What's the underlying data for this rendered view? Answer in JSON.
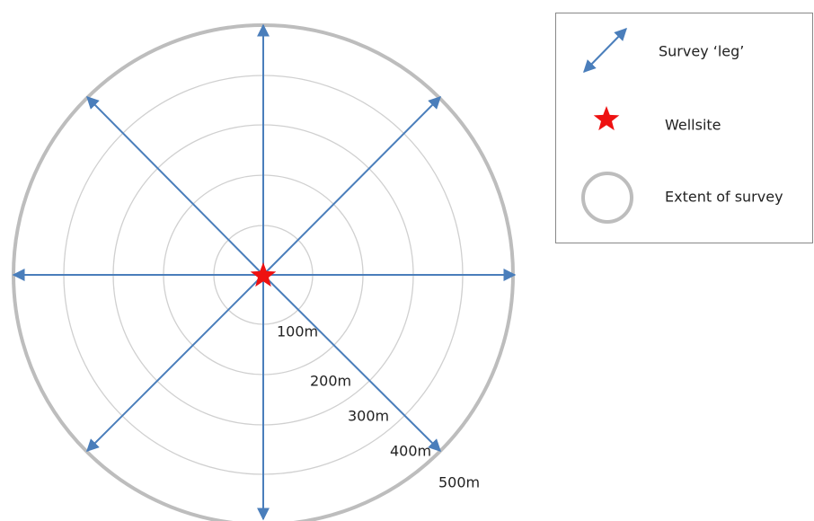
{
  "ring_labels": [
    "100m",
    "200m",
    "300m",
    "400m",
    "500m"
  ],
  "legend": {
    "items": [
      {
        "label": "Survey ‘leg’"
      },
      {
        "label": "Wellsite"
      },
      {
        "label": "Extent of survey"
      }
    ]
  }
}
